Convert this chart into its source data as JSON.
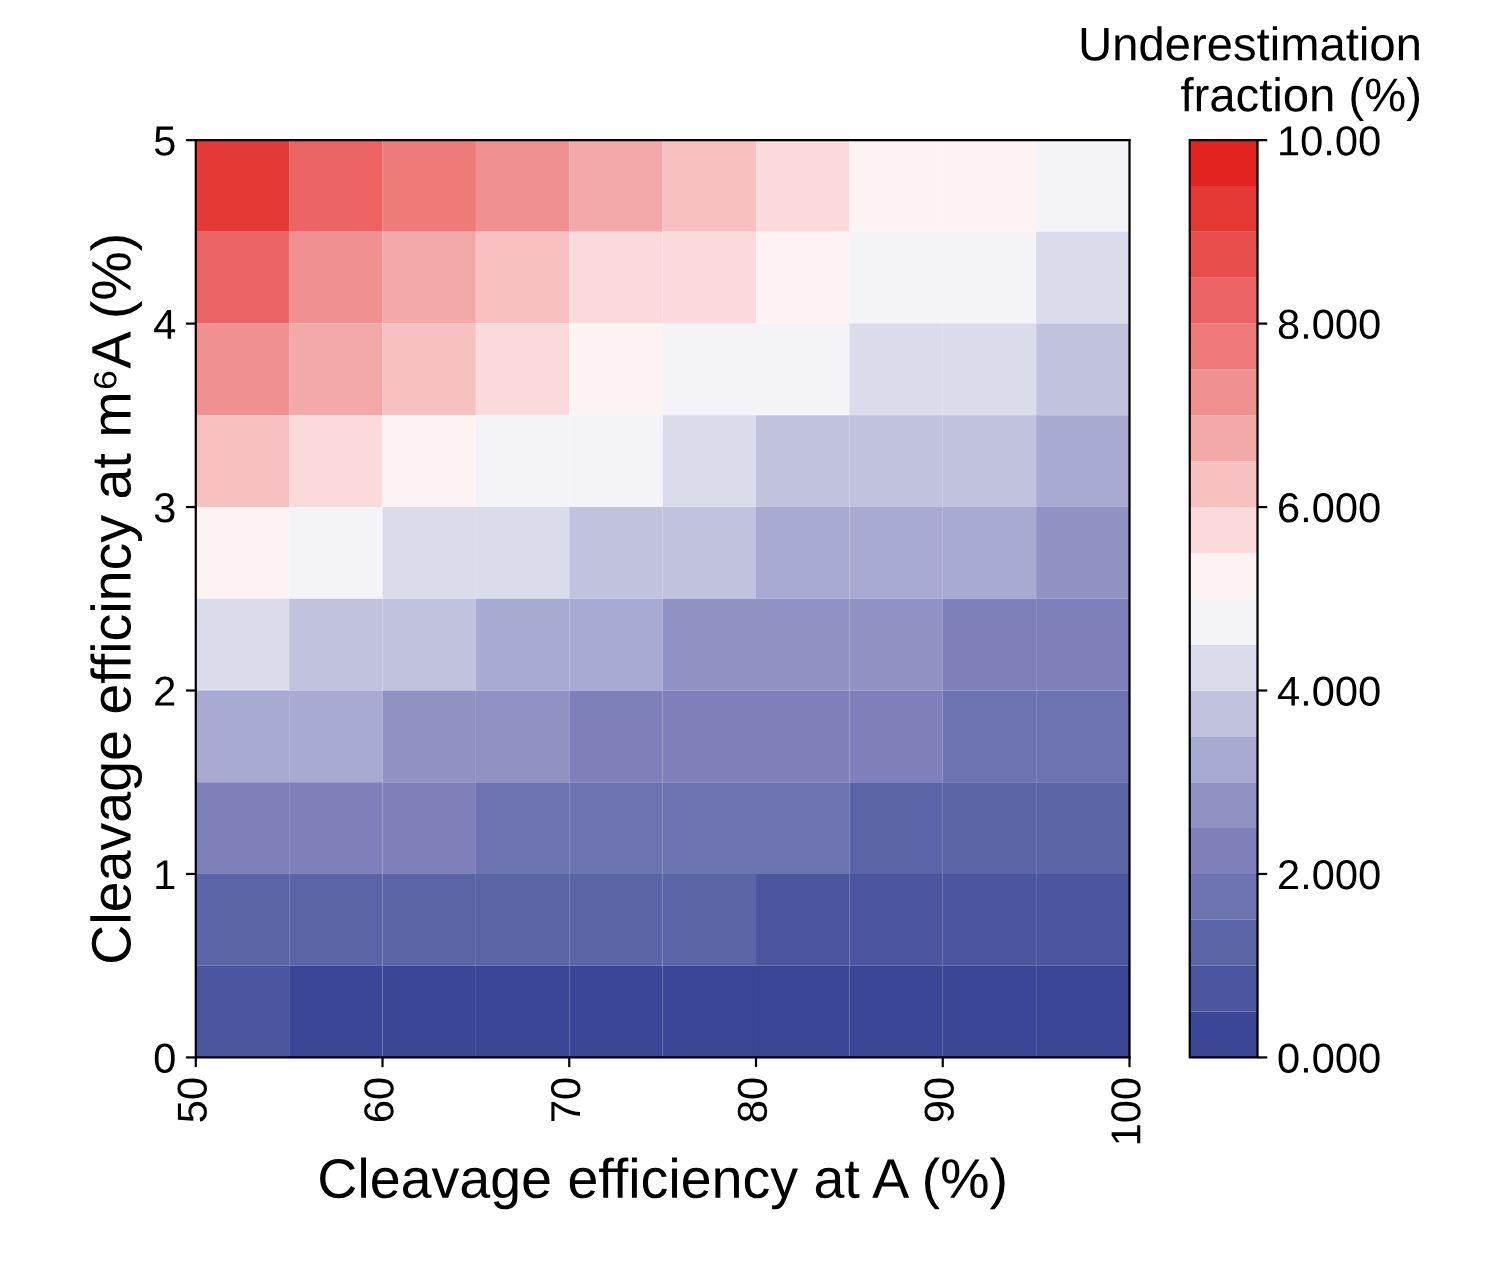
{
  "chart_data": {
    "type": "heatmap",
    "xlabel": "Cleavage efficiency at A (%)",
    "ylabel": "Cleavage efficincy at m⁶A (%)",
    "clabel": "Underestimation\nfraction (%)",
    "x": [
      52.5,
      57.5,
      62.5,
      67.5,
      72.5,
      77.5,
      82.5,
      87.5,
      92.5,
      97.5
    ],
    "xlim": [
      50,
      100
    ],
    "xticks": [
      50,
      60,
      70,
      80,
      90,
      100
    ],
    "ylim": [
      0,
      5
    ],
    "yticks": [
      0,
      1,
      2,
      3,
      4,
      5
    ],
    "clim": [
      0,
      10
    ],
    "cticks": [
      {
        "value": 0,
        "label": "0.000"
      },
      {
        "value": 2,
        "label": "2.000"
      },
      {
        "value": 4,
        "label": "4.000"
      },
      {
        "value": 6,
        "label": "6.000"
      },
      {
        "value": 8,
        "label": "8.000"
      },
      {
        "value": 10,
        "label": "10.00"
      }
    ],
    "cells": [
      [
        9.0,
        8.3,
        7.6,
        7.0,
        6.6,
        6.1,
        5.8,
        5.4,
        5.1,
        4.9
      ],
      [
        8.1,
        7.4,
        6.8,
        6.3,
        5.9,
        5.5,
        5.2,
        4.9,
        4.6,
        4.4
      ],
      [
        7.1,
        6.5,
        6.0,
        5.6,
        5.2,
        4.8,
        4.5,
        4.3,
        4.1,
        3.8
      ],
      [
        6.2,
        5.7,
        5.2,
        4.8,
        4.5,
        4.2,
        3.9,
        3.7,
        3.5,
        3.3
      ],
      [
        5.2,
        4.8,
        4.4,
        4.1,
        3.8,
        3.5,
        3.3,
        3.1,
        3.0,
        2.8
      ],
      [
        4.3,
        3.9,
        3.6,
        3.3,
        3.1,
        2.9,
        2.7,
        2.6,
        2.4,
        2.3
      ],
      [
        3.3,
        3.0,
        2.8,
        2.6,
        2.4,
        2.3,
        2.1,
        2.0,
        1.9,
        1.8
      ],
      [
        2.4,
        2.2,
        2.0,
        1.9,
        1.7,
        1.6,
        1.5,
        1.4,
        1.4,
        1.3
      ],
      [
        1.4,
        1.3,
        1.2,
        1.1,
        1.0,
        1.0,
        0.9,
        0.9,
        0.8,
        0.8
      ],
      [
        0.5,
        0.4,
        0.4,
        0.4,
        0.3,
        0.3,
        0.3,
        0.3,
        0.3,
        0.3
      ]
    ]
  }
}
